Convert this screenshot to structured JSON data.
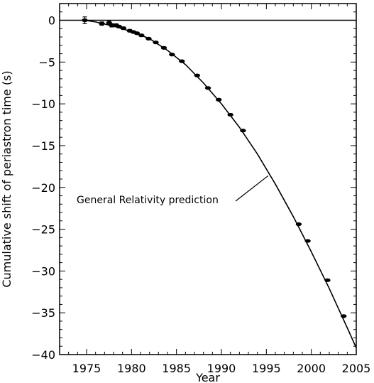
{
  "chart_data": {
    "type": "scatter",
    "title": "",
    "xlabel": "Year",
    "ylabel": "Cumulative shift of periastron time (s)",
    "xlim": [
      1972,
      2005
    ],
    "ylim": [
      -40,
      2
    ],
    "grid": false,
    "x_ticks": [
      1975,
      1980,
      1985,
      1990,
      1995,
      2000,
      2005
    ],
    "y_ticks": [
      0,
      -5,
      -10,
      -15,
      -20,
      -25,
      -30,
      -35,
      -40
    ],
    "x_tick_labels": [
      "1975",
      "1980",
      "1985",
      "1990",
      "1995",
      "2000",
      "2005"
    ],
    "y_tick_labels": [
      "0",
      "−5",
      "−10",
      "−15",
      "−20",
      "−25",
      "−30",
      "−35",
      "−40"
    ],
    "reference_line": {
      "y": 0
    },
    "series": [
      {
        "type": "scatter",
        "points": [
          {
            "x": 1974.8,
            "y": 0.0,
            "yerr": 0.4
          },
          {
            "x": 1976.7,
            "y": -0.4,
            "yerr": 0.2
          },
          {
            "x": 1977.5,
            "y": -0.3,
            "yerr": 0.25
          },
          {
            "x": 1977.8,
            "y": -0.6,
            "yerr": 0.2
          },
          {
            "x": 1978.3,
            "y": -0.6,
            "yerr": 0.18
          },
          {
            "x": 1978.6,
            "y": -0.75,
            "yerr": 0.15
          },
          {
            "x": 1979.1,
            "y": -0.95,
            "yerr": 0.15
          },
          {
            "x": 1979.8,
            "y": -1.25,
            "yerr": 0.15
          },
          {
            "x": 1980.2,
            "y": -1.4,
            "yerr": 0.12
          },
          {
            "x": 1980.6,
            "y": -1.55,
            "yerr": 0.12
          },
          {
            "x": 1981.1,
            "y": -1.8,
            "yerr": 0.12
          },
          {
            "x": 1981.9,
            "y": -2.2,
            "yerr": 0.12
          },
          {
            "x": 1982.7,
            "y": -2.65,
            "yerr": 0.12
          },
          {
            "x": 1983.6,
            "y": -3.3,
            "yerr": 0.12
          },
          {
            "x": 1984.5,
            "y": -4.1,
            "yerr": 0.12
          },
          {
            "x": 1985.6,
            "y": -4.9,
            "yerr": 0.12
          },
          {
            "x": 1987.3,
            "y": -6.6,
            "yerr": 0.12
          },
          {
            "x": 1988.5,
            "y": -8.1,
            "yerr": 0.12
          },
          {
            "x": 1989.7,
            "y": -9.5,
            "yerr": 0.12
          },
          {
            "x": 1991.0,
            "y": -11.3,
            "yerr": 0.12
          },
          {
            "x": 1992.4,
            "y": -13.2,
            "yerr": 0.12
          },
          {
            "x": 1998.6,
            "y": -24.4,
            "yerr": 0.12
          },
          {
            "x": 1999.6,
            "y": -26.4,
            "yerr": 0.12
          },
          {
            "x": 2001.8,
            "y": -31.1,
            "yerr": 0.12
          },
          {
            "x": 2003.6,
            "y": -35.4,
            "yerr": 0.12
          }
        ]
      },
      {
        "type": "line",
        "x": [
          1974.8,
          1976,
          1978,
          1980,
          1982,
          1984,
          1986,
          1988,
          1990,
          1992,
          1994,
          1996,
          1998,
          2000,
          2002,
          2004,
          2005
        ],
        "y": [
          0.0,
          -0.2,
          -0.7,
          -1.35,
          -2.2,
          -3.6,
          -5.3,
          -7.5,
          -10.0,
          -12.8,
          -16.0,
          -19.6,
          -23.5,
          -27.7,
          -32.1,
          -36.8,
          -39.2
        ]
      }
    ],
    "annotation": {
      "text": "General Relativity prediction",
      "x": 1995.2,
      "y": -18.6
    }
  }
}
